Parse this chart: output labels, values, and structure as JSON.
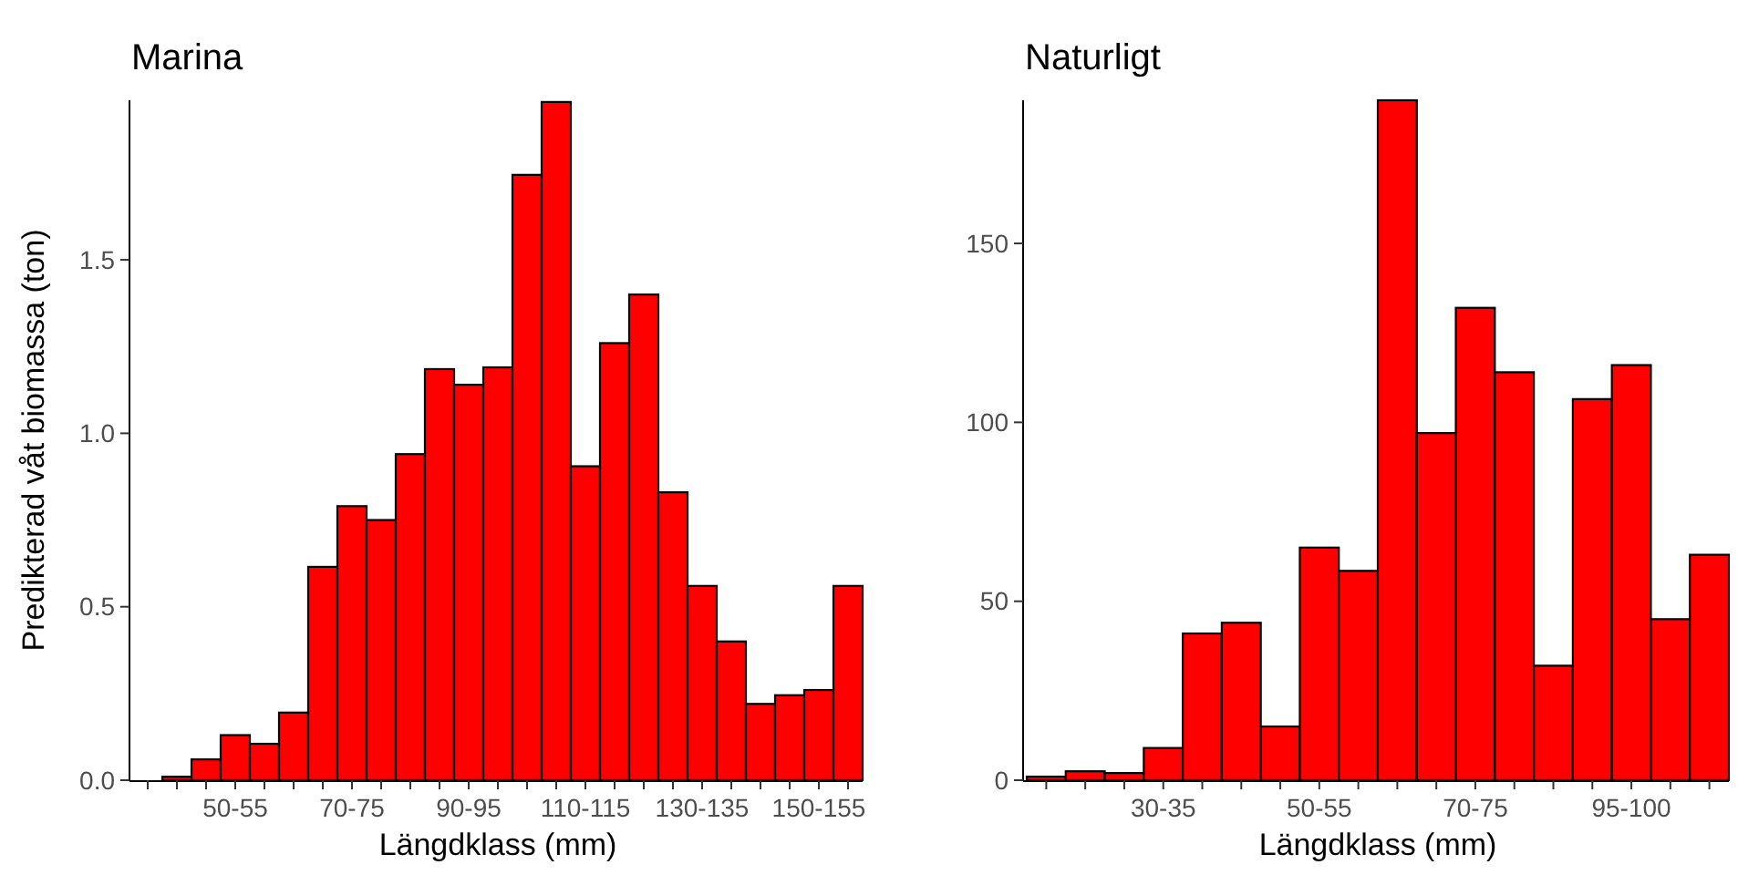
{
  "chart_data": [
    {
      "type": "bar",
      "title": "Marina",
      "xlabel": "Längdklass (mm)",
      "ylabel": "Predikterad våt biomassa (ton)",
      "categories": [
        null,
        null,
        null,
        "50-55",
        null,
        null,
        null,
        "70-75",
        null,
        null,
        null,
        "90-95",
        null,
        null,
        null,
        "110-115",
        null,
        null,
        null,
        "130-135",
        null,
        null,
        null,
        "150-155",
        null
      ],
      "values": [
        0,
        0.01,
        0.06,
        0.13,
        0.105,
        0.195,
        0.615,
        0.79,
        0.75,
        0.94,
        1.185,
        1.14,
        1.19,
        1.745,
        1.955,
        0.905,
        1.26,
        1.4,
        0.83,
        0.56,
        0.4,
        0.22,
        0.245,
        0.26,
        0.56
      ],
      "color": "#ff0000",
      "ylim": [
        0,
        1.96
      ],
      "yticks": [
        {
          "value": 0,
          "label": "0.0"
        },
        0.5,
        {
          "value": 1,
          "label": "1.0"
        },
        1.5
      ]
    },
    {
      "type": "bar",
      "title": "Naturligt",
      "xlabel": "Längdklass (mm)",
      "categories": [
        null,
        null,
        null,
        "30-35",
        null,
        null,
        null,
        "50-55",
        null,
        null,
        null,
        "70-75",
        null,
        null,
        null,
        "95-100",
        null,
        null
      ],
      "values": [
        1,
        2.5,
        2,
        9,
        41,
        44,
        15,
        65,
        58.5,
        190,
        97,
        132,
        114,
        32,
        106.5,
        116,
        45,
        63
      ],
      "color": "#ff0000",
      "ylim": [
        0,
        190
      ],
      "yticks": [
        0,
        50,
        100,
        150
      ]
    }
  ]
}
